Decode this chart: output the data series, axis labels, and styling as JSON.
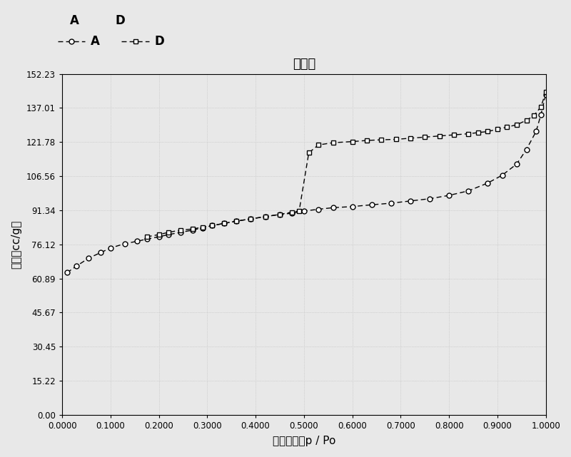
{
  "title": "等温线",
  "xlabel": "相对压力，p / Po",
  "ylabel": "体积［cc/g］",
  "legend_A": "A",
  "legend_D": "D",
  "ylim": [
    0.0,
    152.23
  ],
  "xlim": [
    0.0,
    1.0
  ],
  "yticks": [
    0.0,
    15.22,
    30.45,
    45.67,
    60.89,
    76.12,
    91.34,
    106.56,
    121.78,
    137.01,
    152.23
  ],
  "xticks": [
    0.0,
    0.1,
    0.2,
    0.3,
    0.4,
    0.5,
    0.6,
    0.7,
    0.8,
    0.9,
    1.0
  ],
  "A_x": [
    0.01,
    0.03,
    0.055,
    0.08,
    0.1,
    0.13,
    0.155,
    0.175,
    0.2,
    0.22,
    0.245,
    0.27,
    0.29,
    0.31,
    0.335,
    0.36,
    0.39,
    0.42,
    0.45,
    0.475,
    0.5,
    0.53,
    0.56,
    0.6,
    0.64,
    0.68,
    0.72,
    0.76,
    0.8,
    0.84,
    0.88,
    0.91,
    0.94,
    0.96,
    0.98,
    0.99,
    1.0
  ],
  "A_y": [
    63.5,
    66.5,
    70.0,
    72.5,
    74.5,
    76.5,
    77.5,
    78.5,
    79.5,
    80.5,
    81.5,
    82.5,
    83.5,
    84.5,
    85.5,
    86.5,
    87.5,
    88.5,
    89.5,
    90.0,
    91.0,
    91.8,
    92.5,
    93.0,
    93.8,
    94.5,
    95.5,
    96.5,
    98.0,
    100.0,
    103.5,
    107.0,
    112.0,
    118.5,
    126.5,
    134.0,
    143.0
  ],
  "D_x": [
    0.175,
    0.2,
    0.22,
    0.245,
    0.27,
    0.29,
    0.31,
    0.335,
    0.36,
    0.39,
    0.42,
    0.45,
    0.475,
    0.49,
    0.51,
    0.53,
    0.56,
    0.6,
    0.63,
    0.66,
    0.69,
    0.72,
    0.75,
    0.78,
    0.81,
    0.84,
    0.86,
    0.88,
    0.9,
    0.92,
    0.94,
    0.96,
    0.975,
    0.99,
    1.0
  ],
  "D_y": [
    79.5,
    80.5,
    81.5,
    82.5,
    83.0,
    83.8,
    84.5,
    85.5,
    86.5,
    87.5,
    88.5,
    89.5,
    90.5,
    91.0,
    117.0,
    120.5,
    121.5,
    122.0,
    122.5,
    122.8,
    123.0,
    123.5,
    124.0,
    124.5,
    125.0,
    125.5,
    126.0,
    126.5,
    127.5,
    128.5,
    129.5,
    131.5,
    133.5,
    137.5,
    144.0
  ],
  "line_color": "#000000",
  "bg_color": "#ffffff",
  "grid_color": "#bbbbbb"
}
